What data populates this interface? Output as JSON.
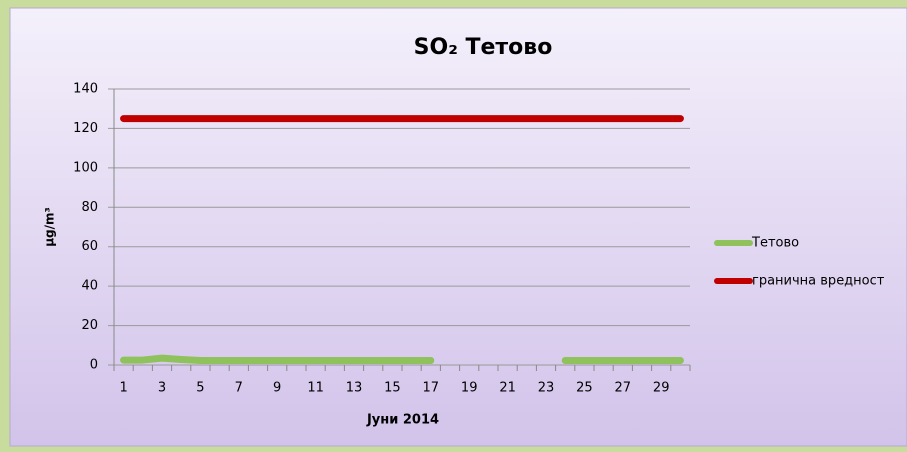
{
  "chart_data": {
    "type": "line",
    "title": "SO₂ Тетово",
    "x_label": "Јуни 2014",
    "y_label": "μg/m³",
    "categories": [
      "1",
      null,
      "3",
      null,
      "5",
      null,
      "7",
      null,
      "9",
      null,
      "11",
      null,
      "13",
      null,
      "15",
      null,
      "17",
      null,
      "19",
      null,
      "21",
      null,
      "23",
      null,
      "25",
      null,
      "27",
      null,
      "29",
      null
    ],
    "series": [
      {
        "name": "Тетово",
        "color": "#8fc15d",
        "values": [
          2.5,
          2.5,
          3.5,
          2.8,
          2.3,
          2.3,
          2.3,
          2.3,
          2.3,
          2.3,
          2.3,
          2.3,
          2.3,
          2.3,
          2.3,
          2.3,
          2.3,
          null,
          null,
          null,
          null,
          null,
          null,
          2.3,
          2.3,
          2.3,
          2.3,
          2.3,
          2.3,
          2.3
        ]
      },
      {
        "name": "гранична вредност",
        "color": "#c00000",
        "values": [
          125,
          125,
          125,
          125,
          125,
          125,
          125,
          125,
          125,
          125,
          125,
          125,
          125,
          125,
          125,
          125,
          125,
          125,
          125,
          125,
          125,
          125,
          125,
          125,
          125,
          125,
          125,
          125,
          125,
          125
        ]
      }
    ],
    "ylim": [
      0,
      140
    ],
    "yticks": [
      0,
      20,
      40,
      60,
      80,
      100,
      120,
      140
    ],
    "grid": true,
    "legend": "right"
  }
}
